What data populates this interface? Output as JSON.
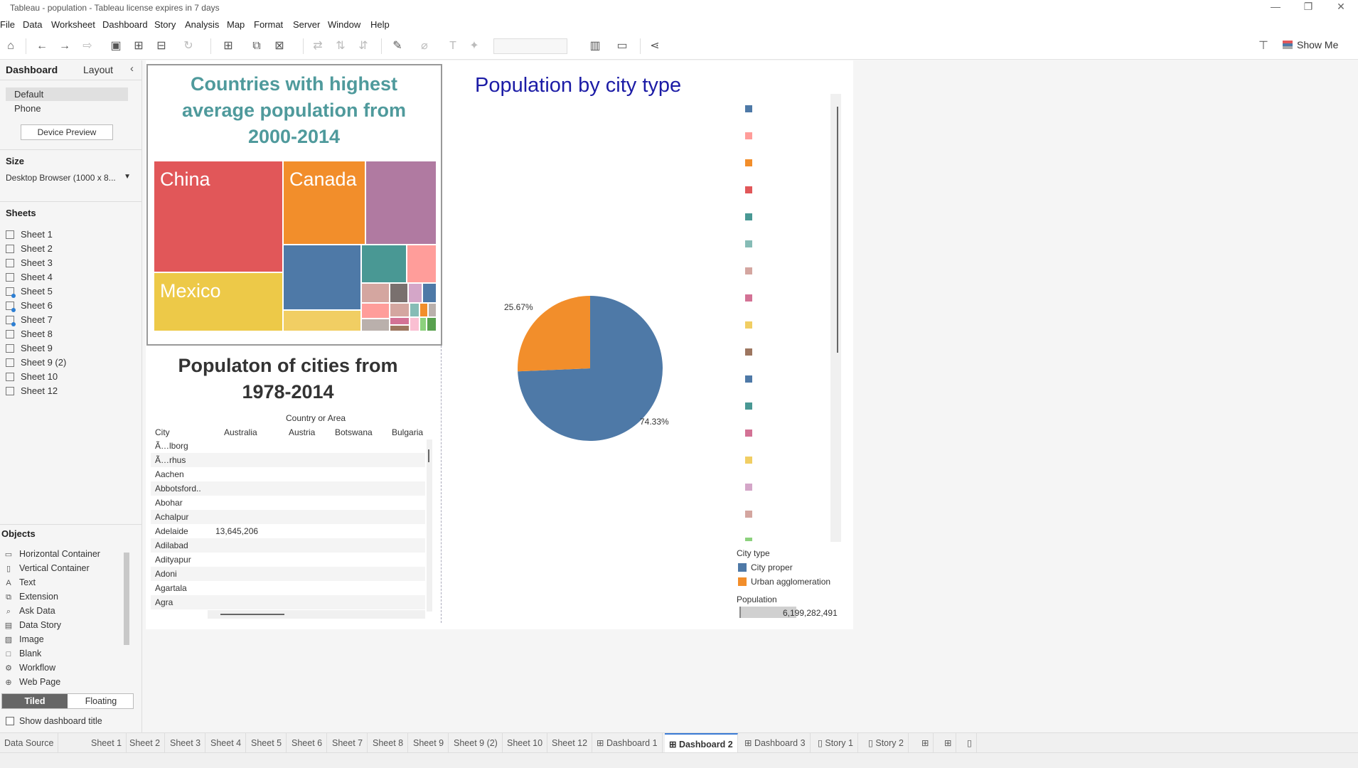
{
  "window": {
    "title": "Tableau - population - Tableau license expires in 7 days",
    "minimize": "—",
    "restore": "❐",
    "close": "✕"
  },
  "menu": [
    "File",
    "Data",
    "Worksheet",
    "Dashboard",
    "Story",
    "Analysis",
    "Map",
    "Format",
    "Server",
    "Window",
    "Help"
  ],
  "toolbar": {
    "show_me": "Show Me"
  },
  "left_panel": {
    "tabs": [
      "Dashboard",
      "Layout"
    ],
    "collapse_icon": "‹",
    "device_options": [
      "Default",
      "Phone"
    ],
    "device_preview": "Device Preview",
    "size_heading": "Size",
    "size_value": "Desktop Browser (1000 x 8...",
    "sheets_heading": "Sheets",
    "sheets": [
      "Sheet 1",
      "Sheet 2",
      "Sheet 3",
      "Sheet 4",
      "Sheet 5",
      "Sheet 6",
      "Sheet 7",
      "Sheet 8",
      "Sheet 9",
      "Sheet 9 (2)",
      "Sheet 10",
      "Sheet 12"
    ],
    "objects_heading": "Objects",
    "objects": [
      {
        "label": "Horizontal Container",
        "icon": "horizontal-container-icon",
        "glyph": "▭"
      },
      {
        "label": "Vertical Container",
        "icon": "vertical-container-icon",
        "glyph": "▯"
      },
      {
        "label": "Text",
        "icon": "text-icon",
        "glyph": "A"
      },
      {
        "label": "Extension",
        "icon": "extension-icon",
        "glyph": "⧉"
      },
      {
        "label": "Ask Data",
        "icon": "ask-data-icon",
        "glyph": "⌕"
      },
      {
        "label": "Data Story",
        "icon": "data-story-icon",
        "glyph": "▤"
      },
      {
        "label": "Image",
        "icon": "image-icon",
        "glyph": "▨"
      },
      {
        "label": "Blank",
        "icon": "blank-icon",
        "glyph": "□"
      },
      {
        "label": "Workflow",
        "icon": "workflow-icon",
        "glyph": "⚙"
      },
      {
        "label": "Web Page",
        "icon": "web-page-icon",
        "glyph": "⊕"
      }
    ],
    "tiled": "Tiled",
    "floating": "Floating",
    "show_title": "Show dashboard title"
  },
  "treemap": {
    "title_line1": "Countries with highest",
    "title_line2": "average population from",
    "title_line3": "2000-2014",
    "labels": {
      "china": "China",
      "canada": "Canada",
      "mexico": "Mexico"
    }
  },
  "table": {
    "title_line1": "Populaton of cities from",
    "title_line2": "1978-2014",
    "col_group": "Country or Area",
    "row_header": "City",
    "columns": [
      "Australia",
      "Austria",
      "Botswana",
      "Bulgaria"
    ],
    "rows": [
      {
        "city": "Ã…lborg",
        "australia": ""
      },
      {
        "city": "Ã…rhus",
        "australia": ""
      },
      {
        "city": "Aachen",
        "australia": ""
      },
      {
        "city": "Abbotsford..",
        "australia": ""
      },
      {
        "city": "Abohar",
        "australia": ""
      },
      {
        "city": "Achalpur",
        "australia": ""
      },
      {
        "city": "Adelaide",
        "australia": "13,645,206"
      },
      {
        "city": "Adilabad",
        "australia": ""
      },
      {
        "city": "Adityapur",
        "australia": ""
      },
      {
        "city": "Adoni",
        "australia": ""
      },
      {
        "city": "Agartala",
        "australia": ""
      },
      {
        "city": "Agra",
        "australia": ""
      }
    ]
  },
  "pie": {
    "title": "Population by city type",
    "label_urban": "25.67%",
    "label_proper": "74.33%",
    "legend_title": "City type",
    "legend": [
      {
        "label": "City proper",
        "color": "#4e79a7"
      },
      {
        "label": "Urban agglomeration",
        "color": "#f28e2b"
      }
    ],
    "size_title": "Population",
    "size_value": "6,199,282,491",
    "swatch_colors": [
      "#4e79a7",
      "#ff9d9a",
      "#f28e2b",
      "#e15759",
      "#499894",
      "#86bcb6",
      "#d4a6a0",
      "#d37295",
      "#f1ce63",
      "#9d7660",
      "#4e79a7",
      "#499894",
      "#d37295",
      "#f1ce63",
      "#d4a6c8",
      "#d4a6a0",
      "#8cd17d"
    ]
  },
  "chart_data": {
    "type": "pie",
    "title": "Population by city type",
    "categories": [
      "City proper",
      "Urban agglomeration"
    ],
    "values": [
      74.33,
      25.67
    ]
  },
  "bottom_tabs": [
    "Data Source",
    "Sheet 1",
    "Sheet 2",
    "Sheet 3",
    "Sheet 4",
    "Sheet 5",
    "Sheet 6",
    "Sheet 7",
    "Sheet 8",
    "Sheet 9",
    "Sheet 9 (2)",
    "Sheet 10",
    "Sheet 12",
    "Dashboard 1",
    "Dashboard 2",
    "Dashboard 3",
    "Story 1",
    "Story 2"
  ],
  "active_tab": "Dashboard 2"
}
